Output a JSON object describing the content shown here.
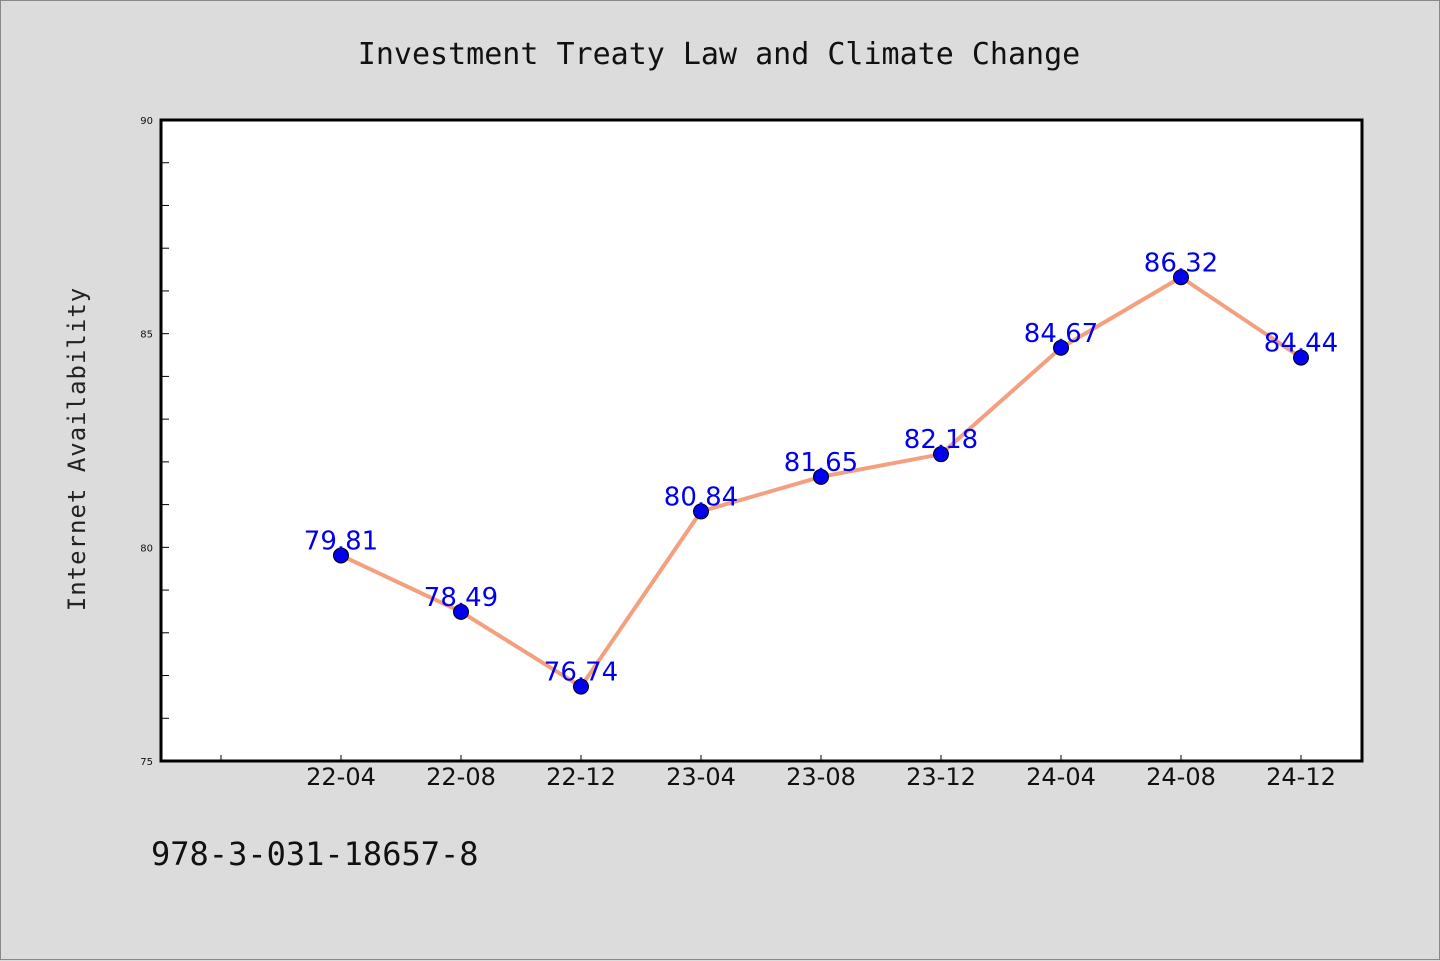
{
  "chart_data": {
    "type": "line",
    "title": "Investment Treaty Law and Climate Change",
    "xlabel": "",
    "ylabel": "Internet Availability",
    "categories": [
      "22-04",
      "22-08",
      "22-12",
      "23-04",
      "23-08",
      "23-12",
      "24-04",
      "24-08",
      "24-12"
    ],
    "values": [
      79.81,
      78.49,
      76.74,
      80.84,
      81.65,
      82.18,
      84.67,
      86.32,
      84.44
    ],
    "data_labels": [
      "79.81",
      "78.49",
      "76.74",
      "80.84",
      "81.65",
      "82.18",
      "84.67",
      "86.32",
      "84.44"
    ],
    "ylim": [
      75,
      90
    ],
    "yticks": [
      "75",
      "80",
      "85",
      "90"
    ],
    "grid": false,
    "line_color": "#f4a07f",
    "marker_color": "#0000ee",
    "label_color": "#0000ee"
  },
  "footer": {
    "isbn": "978-3-031-18657-8"
  }
}
